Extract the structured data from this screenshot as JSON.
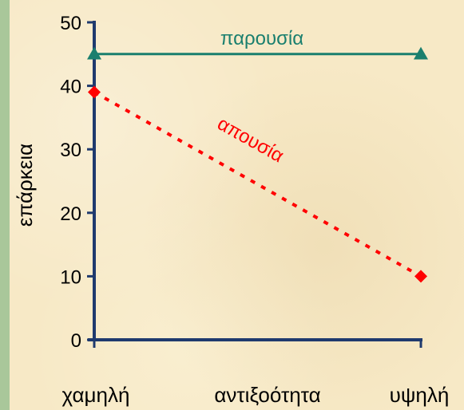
{
  "colors": {
    "background": "#f7e9c6",
    "strip": "#a9c79a",
    "axis": "#1f3a6e",
    "presence": "#1a7f6e",
    "absence": "#ff0000"
  },
  "chart_data": {
    "type": "line",
    "title": "",
    "xlabel": "αντιξοότητα",
    "ylabel": "επάρκεια",
    "categories": [
      "χαμηλή",
      "υψηλή"
    ],
    "ylim": [
      0,
      50
    ],
    "yticks": [
      "0",
      "10",
      "20",
      "30",
      "40",
      "50"
    ],
    "grid": false,
    "series": [
      {
        "name": "παρουσία",
        "values": [
          45,
          45
        ],
        "color": "#1a7f6e",
        "marker": "triangle",
        "dashed": false
      },
      {
        "name": "απουσία",
        "values": [
          39,
          10
        ],
        "color": "#ff0000",
        "marker": "diamond",
        "dashed": true
      }
    ]
  }
}
